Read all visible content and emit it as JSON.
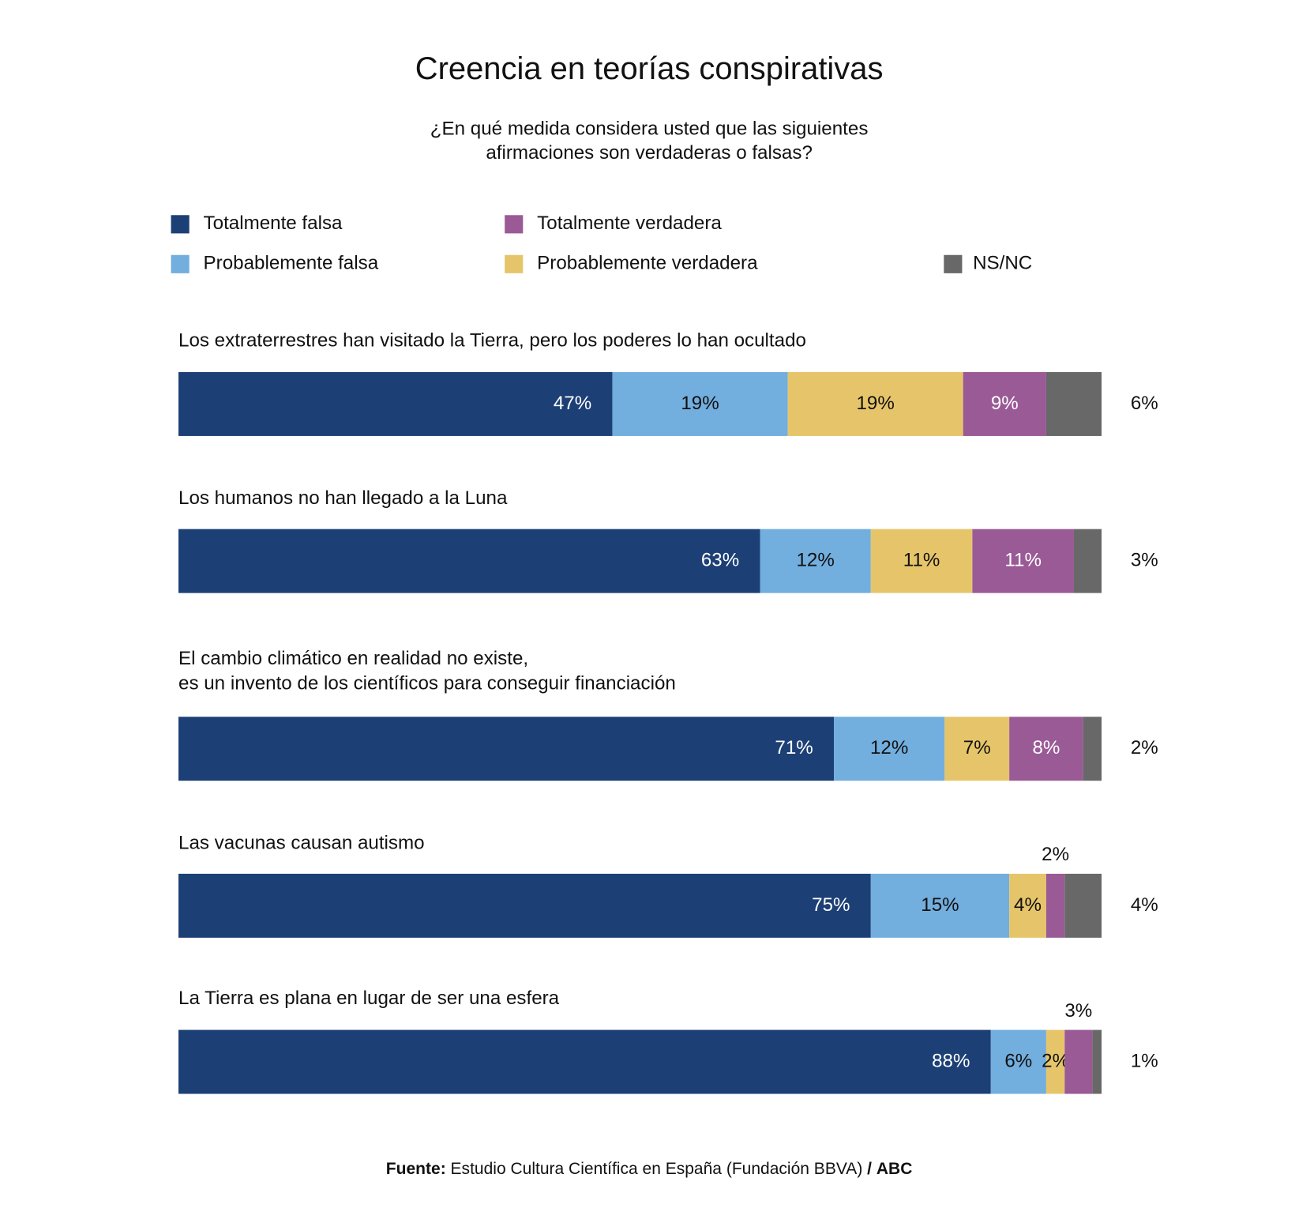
{
  "chart_data": {
    "type": "stacked-bar-horizontal",
    "title": "Creencia en teorías conspirativas",
    "subtitle": [
      "¿En qué medida considera usted que las siguientes",
      "afirmaciones son verdaderas o falsas?"
    ],
    "categories": [
      [
        "Los extraterrestres han visitado la Tierra, pero los poderes lo han ocultado"
      ],
      [
        "Los humanos no han llegado a la Luna"
      ],
      [
        "El cambio climático en realidad no existe,",
        "es un invento de los científicos para conseguir financiación"
      ],
      [
        "Las vacunas causan autismo"
      ],
      [
        "La Tierra es plana en lugar de ser una esfera"
      ]
    ],
    "series": [
      {
        "name": "Totalmente falsa",
        "color": "#1c3f75",
        "values": [
          47,
          63,
          71,
          75,
          88
        ],
        "value_labels": [
          "47%",
          "63%",
          "71%",
          "75%",
          "88%"
        ]
      },
      {
        "name": "Probablemente falsa",
        "color": "#72aede",
        "values": [
          19,
          12,
          12,
          15,
          6
        ],
        "value_labels": [
          "19%",
          "12%",
          "12%",
          "15%",
          "6%"
        ]
      },
      {
        "name": "Probablemente verdadera",
        "color": "#e6c56a",
        "values": [
          19,
          11,
          7,
          4,
          2
        ],
        "value_labels": [
          "19%",
          "11%",
          "7%",
          "4%",
          "2%"
        ]
      },
      {
        "name": "Totalmente verdadera",
        "color": "#9a5a96",
        "values": [
          9,
          11,
          8,
          2,
          3
        ],
        "value_labels": [
          "9%",
          "11%",
          "8%",
          "2%",
          "3%"
        ]
      },
      {
        "name": "NS/NC",
        "color": "#686868",
        "values": [
          6,
          3,
          2,
          4,
          1
        ],
        "value_labels": [
          "6%",
          "3%",
          "2%",
          "4%",
          "1%"
        ]
      }
    ],
    "xlim": [
      0,
      100
    ],
    "source": {
      "label": "Fuente:",
      "text": "Estudio Cultura Científica en España (Fundación BBVA)",
      "separator": "/",
      "brand": "ABC"
    }
  }
}
